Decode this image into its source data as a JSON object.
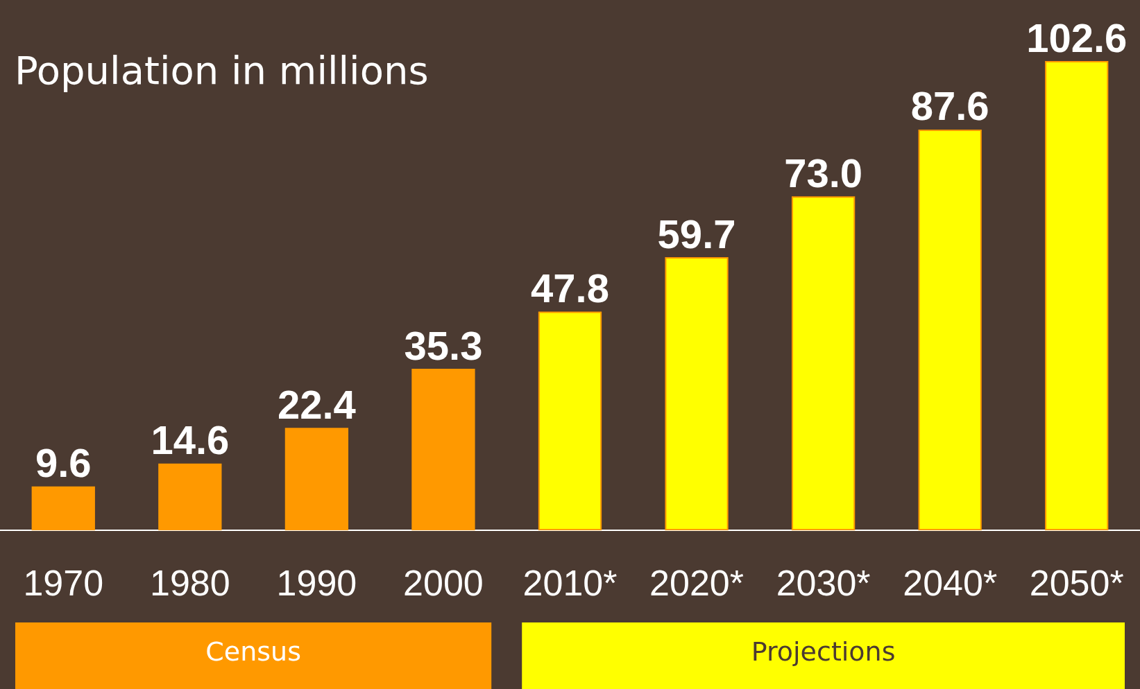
{
  "chart_data": {
    "type": "bar",
    "title": "Population in millions",
    "categories": [
      "1970",
      "1980",
      "1990",
      "2000",
      "2010*",
      "2020*",
      "2030*",
      "2040*",
      "2050*"
    ],
    "series": [
      {
        "name": "Census",
        "color": "#ff9900",
        "values": [
          9.6,
          14.6,
          22.4,
          35.3,
          null,
          null,
          null,
          null,
          null
        ],
        "value_labels": [
          "9.6",
          "14.6",
          "22.4",
          "35.3",
          null,
          null,
          null,
          null,
          null
        ]
      },
      {
        "name": "Projections",
        "color": "#ffff00",
        "values": [
          null,
          null,
          null,
          null,
          47.8,
          59.7,
          73.0,
          87.6,
          102.6
        ],
        "value_labels": [
          null,
          null,
          null,
          null,
          "47.8",
          "59.7",
          "73.0",
          "87.6",
          "102.6"
        ]
      }
    ],
    "legend": "bottom",
    "grid": false
  }
}
